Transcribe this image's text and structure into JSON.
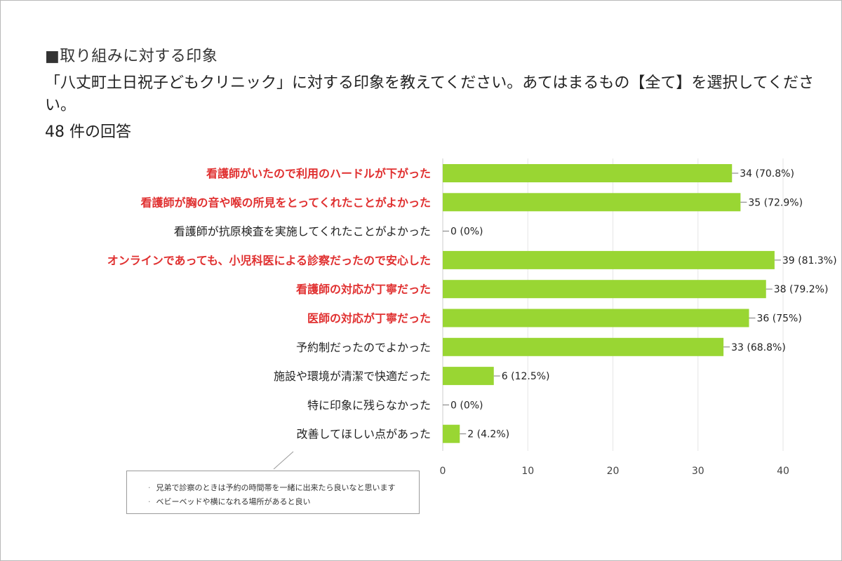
{
  "header": {
    "section_title": "■取り組みに対する印象",
    "question": "「八丈町土日祝子どもクリニック」に対する印象を教えてください。あてはまるもの【全て】を選択してください。",
    "response_count": "48 件の回答"
  },
  "colors": {
    "bar": "#99d633",
    "highlight_label": "#e03030",
    "normal_label": "#222222"
  },
  "comments": [
    "兄弟で診察のときは予約の時間帯を一緒に出来たら良いなと思います",
    "ベビーベッドや横になれる場所があると良い"
  ],
  "chart_data": {
    "type": "bar",
    "orientation": "horizontal",
    "categories": [
      "看護師がいたので利用のハードルが下がった",
      "看護師が胸の音や喉の所見をとってくれたことがよかった",
      "看護師が抗原検査を実施してくれたことがよかった",
      "オンラインであっても、小児科医による診察だったので安心した",
      "看護師の対応が丁寧だった",
      "医師の対応が丁寧だった",
      "予約制だったのでよかった",
      "施設や環境が清潔で快適だった",
      "特に印象に残らなかった",
      "改善してほしい点があった"
    ],
    "values": [
      34,
      35,
      0,
      39,
      38,
      36,
      33,
      6,
      0,
      2
    ],
    "value_labels": [
      "34 (70.8%)",
      "35 (72.9%)",
      "0 (0%)",
      "39 (81.3%)",
      "38 (79.2%)",
      "36 (75%)",
      "33 (68.8%)",
      "6 (12.5%)",
      "0 (0%)",
      "2 (4.2%)"
    ],
    "highlighted": [
      true,
      true,
      false,
      true,
      true,
      true,
      false,
      false,
      false,
      false
    ],
    "xlim": [
      0,
      40
    ],
    "xticks": [
      "0",
      "10",
      "20",
      "30",
      "40"
    ],
    "grid": true
  }
}
